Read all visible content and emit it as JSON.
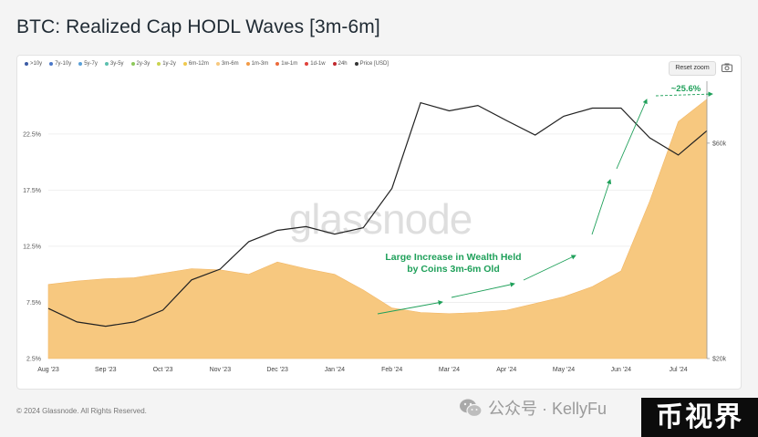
{
  "title": "BTC: Realized Cap HODL Waves [3m-6m]",
  "legend": [
    {
      "label": ">10y",
      "color": "#3b5ba5"
    },
    {
      "label": "7y-10y",
      "color": "#4a78c8"
    },
    {
      "label": "5y-7y",
      "color": "#5aa0d8"
    },
    {
      "label": "3y-5y",
      "color": "#5bbfae"
    },
    {
      "label": "2y-3y",
      "color": "#8dc85b"
    },
    {
      "label": "1y-2y",
      "color": "#c9d34f"
    },
    {
      "label": "6m-12m",
      "color": "#f0c94d"
    },
    {
      "label": "3m-6m",
      "color": "#f7c87f"
    },
    {
      "label": "1m-3m",
      "color": "#f29a45"
    },
    {
      "label": "1w-1m",
      "color": "#ec6a3a"
    },
    {
      "label": "1d-1w",
      "color": "#e0413a"
    },
    {
      "label": "24h",
      "color": "#c0282d"
    },
    {
      "label": "Price [USD]",
      "color": "#333333"
    }
  ],
  "controls": {
    "reset_zoom": "Reset zoom",
    "camera_icon": "camera-icon"
  },
  "annotation": {
    "line1": "Large Increase in Wealth Held",
    "line2": "by Coins 3m-6m Old",
    "pct": "~25.6%",
    "color": "#1fa05a"
  },
  "watermark": "glassnode",
  "footer": "© 2024 Glassnode. All Rights Reserved.",
  "wechat": {
    "text": "公众号 · KellyFu",
    "icon": "wechat-icon"
  },
  "badge": "币视界",
  "chart_data": {
    "type": "area",
    "title": "BTC: Realized Cap HODL Waves [3m-6m]",
    "x_ticks": [
      "Aug '23",
      "Sep '23",
      "Oct '23",
      "Nov '23",
      "Dec '23",
      "Jan '24",
      "Feb '24",
      "Mar '24",
      "Apr '24",
      "May '24",
      "Jun '24",
      "Jul '24"
    ],
    "y_left_ticks": [
      "2.5%",
      "7.5%",
      "12.5%",
      "17.5%",
      "22.5%"
    ],
    "y_left_range": [
      2.5,
      27.2
    ],
    "y_right_ticks": [
      "$20k",
      "$60k"
    ],
    "y_right_range": [
      20000,
      71500
    ],
    "fill_color": "#f7c87f",
    "price_color": "#222222",
    "x": [
      0,
      0.5,
      1,
      1.5,
      2,
      2.5,
      3,
      3.5,
      4,
      4.5,
      5,
      5.5,
      6,
      6.5,
      7,
      7.5,
      8,
      8.5,
      9,
      9.5,
      10,
      10.5,
      11,
      11.5
    ],
    "series": [
      {
        "name": "3m-6m",
        "axis": "left",
        "values": [
          9.1,
          9.4,
          9.6,
          9.7,
          10.1,
          10.5,
          10.4,
          10.0,
          11.1,
          10.5,
          10.0,
          8.6,
          7.0,
          6.6,
          6.5,
          6.6,
          6.8,
          7.4,
          8.0,
          8.9,
          10.3,
          16.5,
          23.6,
          25.6
        ]
      },
      {
        "name": "Price [USD]",
        "axis": "right",
        "values": [
          29300,
          26800,
          26000,
          26800,
          29000,
          34600,
          36600,
          41700,
          43800,
          44500,
          43100,
          44300,
          51600,
          67500,
          66000,
          67000,
          64200,
          61500,
          65000,
          66500,
          66500,
          61000,
          57800,
          62300
        ]
      }
    ],
    "annotations": [
      {
        "text": "Large Increase in Wealth Held by Coins 3m-6m Old"
      },
      {
        "text": "~25.6%"
      }
    ]
  }
}
